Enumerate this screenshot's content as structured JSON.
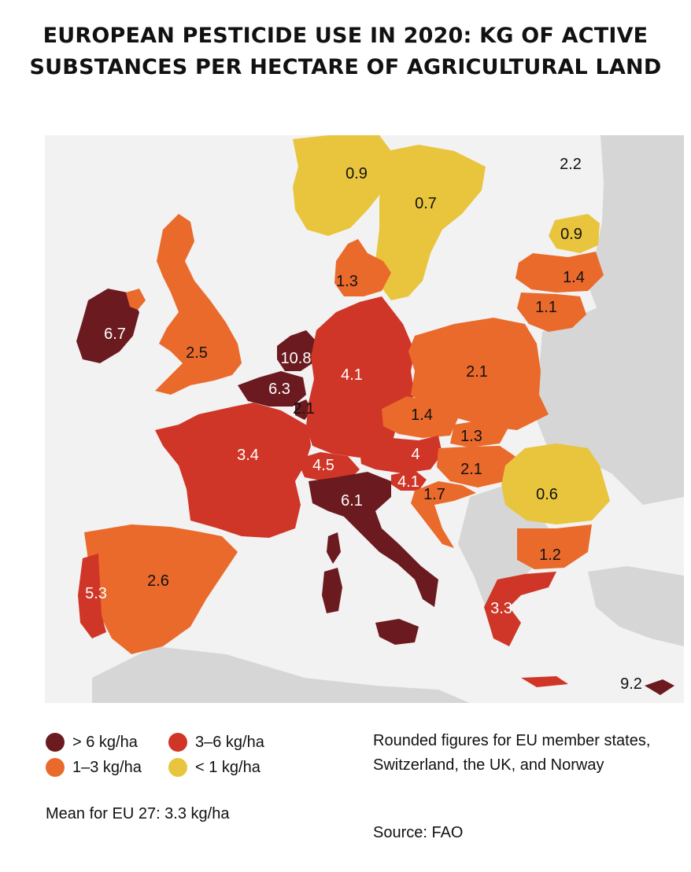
{
  "title": {
    "line1": "EUROPEAN PESTICIDE USE IN 2020: KG OF ACTIVE",
    "line2": "SUBSTANCES PER HECTARE OF AGRICULTURAL LAND"
  },
  "colors": {
    "very_high": "#6b1a1f",
    "high": "#cf3627",
    "medium": "#ea6a2c",
    "low": "#e8c53d",
    "sea": "#f2f2f2",
    "non_data_land": "#d6d6d6"
  },
  "legend": {
    "items": [
      {
        "label": "> 6 kg/ha",
        "color": "#6b1a1f"
      },
      {
        "label": "3–6 kg/ha",
        "color": "#cf3627"
      },
      {
        "label": "1–3 kg/ha",
        "color": "#ea6a2c"
      },
      {
        "label": "< 1 kg/ha",
        "color": "#e8c53d"
      }
    ],
    "mean": "Mean for EU 27: 3.3 kg/ha"
  },
  "note": "Rounded figures for EU member states, Switzerland, the UK, and Norway",
  "source": "Source: FAO",
  "values": {
    "norway": "0.9",
    "sweden": "0.7",
    "finland": "2.2",
    "estonia": "0.9",
    "latvia": "1.4",
    "lithuania": "1.1",
    "denmark": "1.3",
    "ireland": "6.7",
    "uk": "2.5",
    "netherlands": "10.8",
    "belgium": "6.3",
    "luxembourg": "2.1",
    "germany": "4.1",
    "poland": "2.1",
    "czechia": "1.4",
    "slovakia": "1.3",
    "austria": "4",
    "hungary": "2.1",
    "slovenia": "4.1",
    "croatia": "1.7",
    "romania": "0.6",
    "bulgaria": "1.2",
    "france": "3.4",
    "switzerland": "4.5",
    "italy": "6.1",
    "spain": "2.6",
    "portugal": "5.3",
    "greece": "3.3",
    "cyprus": "9.2"
  }
}
